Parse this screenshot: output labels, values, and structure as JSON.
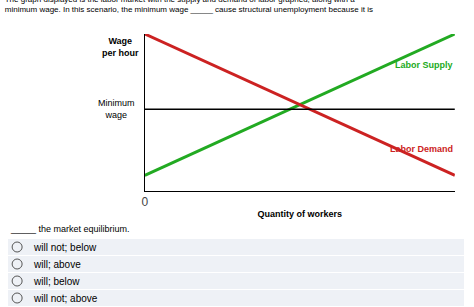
{
  "chart_data": {
    "type": "line",
    "title": "The graph displayed is the labor market with the supply and demand of labor graphed, along with a\nminimum wage. In this scenario, the minimum wage _____ cause structural unemployment because it is",
    "x_label": "Quantity of workers",
    "y_label": "Wage\nper hour",
    "series": [
      {
        "name": "Labor Supply",
        "color": "#22aa22",
        "x": [
          0,
          10
        ],
        "values": [
          1,
          10
        ]
      },
      {
        "name": "Labor Demand",
        "color": "#cc2222",
        "x": [
          0,
          10
        ],
        "values": [
          10,
          1
        ]
      },
      {
        "name": "Minimum\nwage",
        "color": "#000000",
        "x": [
          0,
          10
        ],
        "values": [
          5.2,
          5.2
        ]
      }
    ],
    "xlim": [
      0,
      10
    ],
    "ylim": [
      0,
      10
    ],
    "xticks": [
      0
    ],
    "yticks": [],
    "tick_labels": "x",
    "grid": false,
    "annotations": [
      "_____ the market equilibrium.",
      "will not; below",
      "will; above",
      "will; below",
      "will not; above"
    ]
  }
}
